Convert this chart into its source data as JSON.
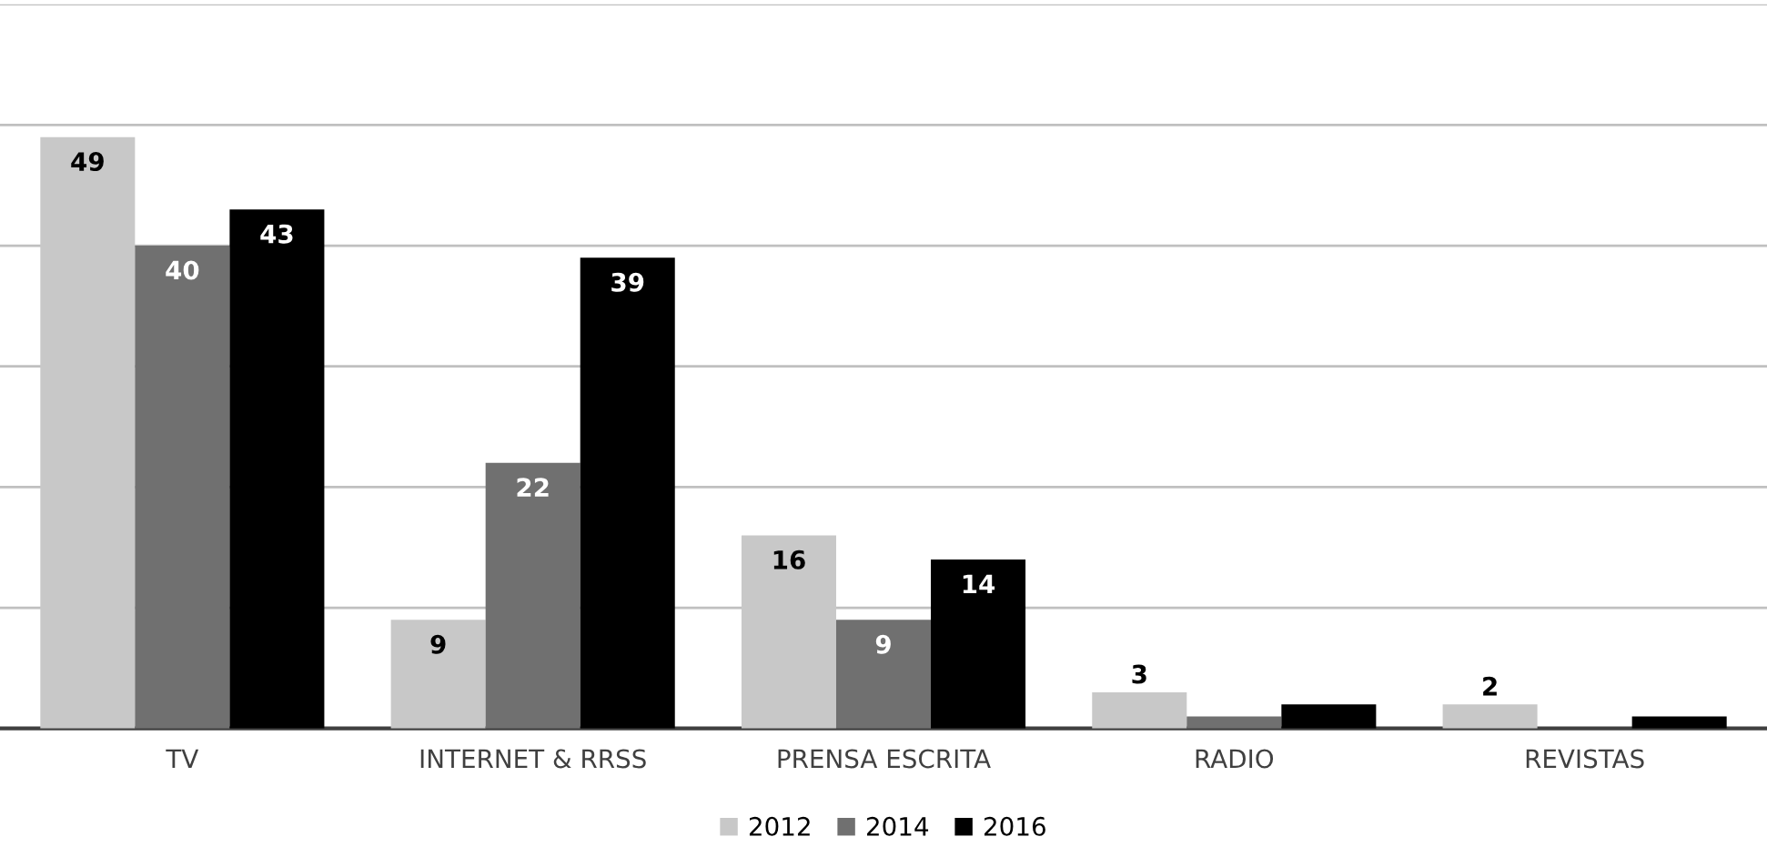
{
  "chart_data": {
    "type": "bar",
    "categories": [
      "TV",
      "INTERNET & RRSS",
      "PRENSA ESCRITA",
      "RADIO",
      "REVISTAS"
    ],
    "series": [
      {
        "name": "2012",
        "color": "#c8c8c8",
        "values": [
          49,
          9,
          16,
          3,
          2
        ],
        "value_labels": [
          "49",
          "9",
          "16",
          "3",
          "2"
        ]
      },
      {
        "name": "2014",
        "color": "#707070",
        "values": [
          40,
          22,
          9,
          1,
          0
        ],
        "value_labels": [
          "40",
          "22",
          "9",
          null,
          null
        ]
      },
      {
        "name": "2016",
        "color": "#000000",
        "values": [
          43,
          39,
          14,
          2,
          1
        ],
        "value_labels": [
          "43",
          "39",
          "14",
          null,
          null
        ]
      }
    ],
    "ylim": [
      0,
      60
    ],
    "yticks": [
      {
        "value": 0,
        "label": null
      },
      {
        "value": 10,
        "label": null
      },
      {
        "value": 20,
        "label": null
      },
      {
        "value": 30,
        "label": null
      },
      {
        "value": 40,
        "label": null
      },
      {
        "value": 50,
        "label": null
      },
      {
        "value": 60,
        "label": null
      }
    ],
    "grid": "y",
    "legend": "bottom",
    "tick_labels": "x"
  }
}
